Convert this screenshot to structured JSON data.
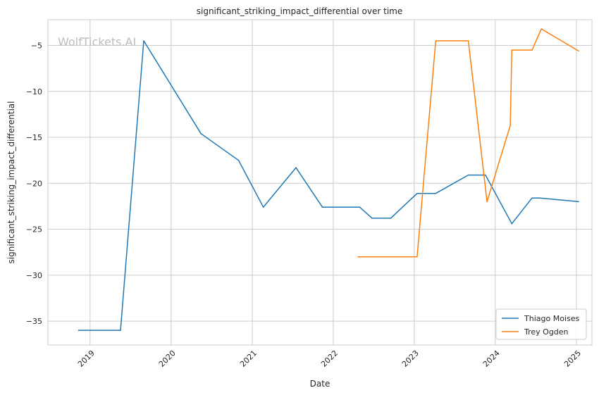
{
  "chart_data": {
    "type": "line",
    "title": "significant_striking_impact_differential over time",
    "xlabel": "Date",
    "ylabel": "significant_striking_impact_differential",
    "watermark": "WolfTickets.AI",
    "x_ticks": [
      "2019",
      "2020",
      "2021",
      "2022",
      "2023",
      "2024",
      "2025"
    ],
    "y_ticks": [
      -5,
      -10,
      -15,
      -20,
      -25,
      -30,
      -35
    ],
    "xlim": [
      "2018-06-25",
      "2025-03-12"
    ],
    "ylim": [
      -37.6,
      -2.2
    ],
    "grid": true,
    "legend_position": "lower-right",
    "series": [
      {
        "name": "Thiago Moises",
        "color": "#1f77b4",
        "points": [
          [
            "2018-11-10",
            -36.0
          ],
          [
            "2019-05-18",
            -36.0
          ],
          [
            "2019-08-31",
            -4.5
          ],
          [
            "2020-05-15",
            -14.6
          ],
          [
            "2020-10-31",
            -17.5
          ],
          [
            "2021-02-20",
            -22.6
          ],
          [
            "2021-07-17",
            -18.3
          ],
          [
            "2021-11-13",
            -22.6
          ],
          [
            "2022-04-30",
            -22.6
          ],
          [
            "2022-06-25",
            -23.8
          ],
          [
            "2022-09-17",
            -23.8
          ],
          [
            "2023-01-14",
            -21.1
          ],
          [
            "2023-04-08",
            -21.1
          ],
          [
            "2023-09-02",
            -19.1
          ],
          [
            "2023-11-18",
            -19.1
          ],
          [
            "2024-03-16",
            -24.4
          ],
          [
            "2024-06-15",
            -21.6
          ],
          [
            "2024-07-20",
            -21.6
          ],
          [
            "2025-01-11",
            -22.0
          ]
        ]
      },
      {
        "name": "Trey Ogden",
        "color": "#ff7f0e",
        "points": [
          [
            "2022-04-23",
            -28.0
          ],
          [
            "2023-01-14",
            -28.0
          ],
          [
            "2023-04-08",
            -4.5
          ],
          [
            "2023-09-02",
            -4.5
          ],
          [
            "2023-11-25",
            -22.0
          ],
          [
            "2024-03-09",
            -13.7
          ],
          [
            "2024-03-16",
            -5.5
          ],
          [
            "2024-06-15",
            -5.5
          ],
          [
            "2024-07-27",
            -3.2
          ],
          [
            "2025-01-11",
            -5.6
          ]
        ]
      }
    ]
  }
}
